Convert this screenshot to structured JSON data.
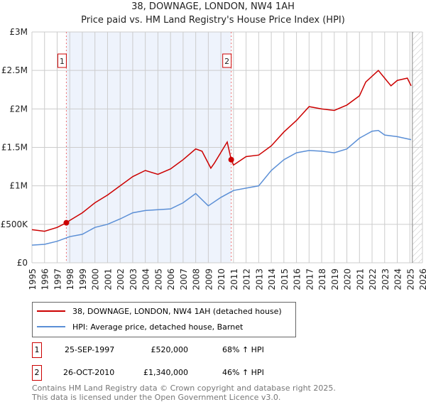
{
  "chart_data": {
    "type": "line",
    "title": "38, DOWNAGE, LONDON, NW4 1AH",
    "subtitle": "Price paid vs. HM Land Registry's House Price Index (HPI)",
    "xlim": [
      1995,
      2026
    ],
    "ylim": [
      0,
      3000000
    ],
    "yticks": [
      {
        "v": 0,
        "label": "£0"
      },
      {
        "v": 500000,
        "label": "£500K"
      },
      {
        "v": 1000000,
        "label": "£1M"
      },
      {
        "v": 1500000,
        "label": "£1.5M"
      },
      {
        "v": 2000000,
        "label": "£2M"
      },
      {
        "v": 2500000,
        "label": "£2.5M"
      },
      {
        "v": 3000000,
        "label": "£3M"
      }
    ],
    "xticks": [
      "1995",
      "1996",
      "1997",
      "1998",
      "1999",
      "2000",
      "2001",
      "2002",
      "2003",
      "2004",
      "2005",
      "2006",
      "2007",
      "2008",
      "2009",
      "2010",
      "2011",
      "2012",
      "2013",
      "2014",
      "2015",
      "2016",
      "2017",
      "2018",
      "2019",
      "2020",
      "2021",
      "2022",
      "2023",
      "2024",
      "2025",
      "2026"
    ],
    "series": [
      {
        "name": "38, DOWNAGE, LONDON, NW4 1AH (detached house)",
        "color": "#cc0000",
        "x": [
          1995,
          1996,
          1997,
          1997.73,
          1998,
          1999,
          2000,
          2001,
          2002,
          2003,
          2004,
          2005,
          2006,
          2007,
          2008,
          2008.5,
          2009.2,
          2009.5,
          2010.5,
          2010.82,
          2011,
          2012,
          2013,
          2014,
          2015,
          2016,
          2017,
          2018,
          2019,
          2020,
          2021,
          2021.5,
          2022.5,
          2023,
          2023.5,
          2024,
          2024.8,
          2025.1
        ],
        "y": [
          430000,
          410000,
          460000,
          520000,
          550000,
          650000,
          780000,
          880000,
          1000000,
          1120000,
          1200000,
          1150000,
          1220000,
          1340000,
          1480000,
          1450000,
          1230000,
          1300000,
          1570000,
          1340000,
          1270000,
          1380000,
          1400000,
          1520000,
          1700000,
          1850000,
          2030000,
          2000000,
          1980000,
          2050000,
          2170000,
          2350000,
          2500000,
          2400000,
          2300000,
          2370000,
          2400000,
          2300000
        ]
      },
      {
        "name": "HPI: Average price, detached house, Barnet",
        "color": "#5b8fd6",
        "x": [
          1995,
          1996,
          1997,
          1998,
          1999,
          2000,
          2001,
          2002,
          2003,
          2004,
          2005,
          2006,
          2007,
          2008,
          2009,
          2010,
          2011,
          2012,
          2013,
          2014,
          2015,
          2016,
          2017,
          2018,
          2019,
          2020,
          2021,
          2022,
          2022.5,
          2023,
          2024,
          2025.1
        ],
        "y": [
          230000,
          240000,
          280000,
          340000,
          370000,
          460000,
          500000,
          570000,
          650000,
          680000,
          690000,
          700000,
          780000,
          900000,
          740000,
          850000,
          940000,
          970000,
          1000000,
          1200000,
          1340000,
          1430000,
          1460000,
          1450000,
          1430000,
          1480000,
          1620000,
          1710000,
          1720000,
          1660000,
          1640000,
          1600000
        ]
      }
    ],
    "sales": [
      {
        "label": "1",
        "x": 1997.73,
        "y": 520000,
        "date": "25-SEP-1997",
        "price": "£520,000",
        "hpi": "68% ↑ HPI"
      },
      {
        "label": "2",
        "x": 2010.82,
        "y": 1340000,
        "date": "26-OCT-2010",
        "price": "£1,340,000",
        "hpi": "46% ↑ HPI"
      }
    ],
    "forecast_start": 2025.2
  },
  "footer": [
    "Contains HM Land Registry data © Crown copyright and database right 2025.",
    "This data is licensed under the Open Government Licence v3.0."
  ]
}
